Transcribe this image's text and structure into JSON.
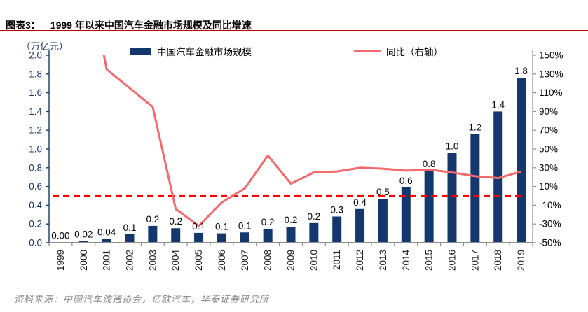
{
  "header": {
    "figure_label": "图表3：",
    "title": "1999 年以来中国汽车金融市场规模及同比增速"
  },
  "footer": {
    "source": "资料来源：中国汽车流通协会，亿欧汽车，华泰证券研究所"
  },
  "colors": {
    "bar": "#14386e",
    "line": "#f4696b",
    "dashed_zero_line": "#fe0000",
    "title_underline": "#c00000",
    "left_axis": "#17386e",
    "right_axis_text": "#000000",
    "x_label_text": "#1a1a1a",
    "bar_label_text": "#000000",
    "baseline_gray": "#8c8c8c",
    "source_text": "#848484"
  },
  "chart_data": {
    "type": "bar",
    "combo": "bar+line",
    "categories": [
      "1999",
      "2000",
      "2001",
      "2002",
      "2003",
      "2004",
      "2005",
      "2006",
      "2007",
      "2008",
      "2009",
      "2010",
      "2011",
      "2012",
      "2013",
      "2014",
      "2015",
      "2016",
      "2017",
      "2018",
      "2019"
    ],
    "series": [
      {
        "name": "中国汽车金融市场规模",
        "type": "bar",
        "axis": "left",
        "values": [
          0.004,
          0.02,
          0.04,
          0.09,
          0.18,
          0.155,
          0.105,
          0.1,
          0.11,
          0.15,
          0.17,
          0.21,
          0.28,
          0.36,
          0.47,
          0.59,
          0.77,
          0.96,
          1.16,
          1.4,
          1.76
        ],
        "data_labels": [
          "0.00",
          "0.02",
          "0.04",
          "0.1",
          "0.2",
          "0.2",
          "0.1",
          "0.1",
          "0.1",
          "0.2",
          "0.2",
          "0.2",
          "0.3",
          "0.4",
          "0.5",
          "0.6",
          "0.8",
          "1.0",
          "1.2",
          "1.4",
          "1.8"
        ]
      },
      {
        "name": "同比（右轴）",
        "type": "line",
        "axis": "right",
        "values_pct": [
          null,
          260,
          135,
          115,
          95,
          -14,
          -32,
          -7,
          8,
          43,
          13,
          25,
          26,
          30,
          29,
          27,
          28,
          25,
          21,
          19,
          26
        ],
        "note": "2000 value exceeds axis max and is clipped at top of plot"
      }
    ],
    "left_axis": {
      "label": "（万亿元）",
      "min": 0,
      "max": 2.0,
      "step": 0.2,
      "tick_labels": [
        "0.0",
        "0.2",
        "0.4",
        "0.6",
        "0.8",
        "1.0",
        "1.2",
        "1.4",
        "1.6",
        "1.8",
        "2.0"
      ]
    },
    "right_axis": {
      "min": -50,
      "max": 150,
      "step": 20,
      "tick_labels": [
        "-50%",
        "-30%",
        "-10%",
        "10%",
        "30%",
        "50%",
        "70%",
        "90%",
        "110%",
        "130%",
        "150%"
      ]
    },
    "reference_line": {
      "value_pct": 0,
      "style": "dashed"
    },
    "legend_position": "top",
    "grid": false
  }
}
